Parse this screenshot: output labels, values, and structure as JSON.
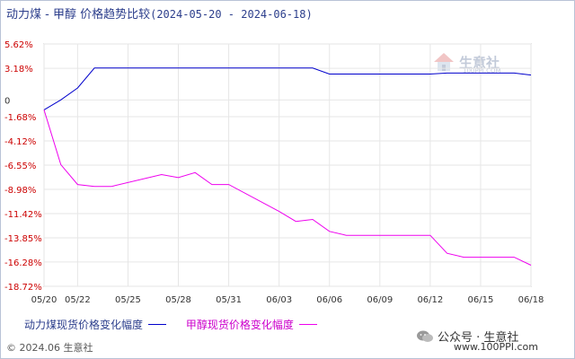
{
  "title": {
    "main": "动力煤 - 甲醇 价格趋势比较",
    "range": "(2024-05-20 - 2024-06-18)"
  },
  "watermark": {
    "brand": "生意社",
    "url": "100PPI.COM",
    "icon": "house-logo-icon"
  },
  "footer": {
    "copyright": "© 2024.06 生意社",
    "wechat_label": "公众号 · 生意社",
    "url": "www.100PPI.com"
  },
  "colors": {
    "series_1": "#0000cc",
    "series_2": "#ee00ee",
    "y_tick": "#cc0000",
    "grid": "#e6e6e6",
    "axis": "#999999"
  },
  "chart_data": {
    "type": "line",
    "title": "动力煤 - 甲醇 价格趋势比较",
    "xlabel": "",
    "ylabel": "",
    "ylim": [
      -18.72,
      5.62
    ],
    "grid": true,
    "legend_position": "bottom-left",
    "x_tick_labels": [
      "05/20",
      "05/22",
      "05/25",
      "05/28",
      "05/31",
      "06/03",
      "06/06",
      "06/09",
      "06/12",
      "06/15",
      "06/18"
    ],
    "y_tick_labels": [
      "5.62%",
      "3.18%",
      "0",
      "-1.68%",
      "-4.12%",
      "-6.55%",
      "-8.98%",
      "-11.42%",
      "-13.85%",
      "-16.28%",
      "-18.72%"
    ],
    "series": [
      {
        "name": "动力煤现货价格变化幅度",
        "points": [
          {
            "x": "05/20",
            "y": -1.0
          },
          {
            "x": "05/21",
            "y": 0.0
          },
          {
            "x": "05/22",
            "y": 1.2
          },
          {
            "x": "05/23",
            "y": 3.2
          },
          {
            "x": "05/24",
            "y": 3.2
          },
          {
            "x": "05/27",
            "y": 3.2
          },
          {
            "x": "05/28",
            "y": 3.2
          },
          {
            "x": "05/29",
            "y": 3.2
          },
          {
            "x": "05/30",
            "y": 3.2
          },
          {
            "x": "05/31",
            "y": 3.2
          },
          {
            "x": "06/03",
            "y": 3.2
          },
          {
            "x": "06/04",
            "y": 3.2
          },
          {
            "x": "06/05",
            "y": 3.2
          },
          {
            "x": "06/06",
            "y": 2.6
          },
          {
            "x": "06/07",
            "y": 2.6
          },
          {
            "x": "06/11",
            "y": 2.6
          },
          {
            "x": "06/12",
            "y": 2.6
          },
          {
            "x": "06/13",
            "y": 2.7
          },
          {
            "x": "06/14",
            "y": 2.7
          },
          {
            "x": "06/17",
            "y": 2.7
          },
          {
            "x": "06/18",
            "y": 2.5
          }
        ]
      },
      {
        "name": "甲醇现货价格变化幅度",
        "points": [
          {
            "x": "05/20",
            "y": -1.0
          },
          {
            "x": "05/21",
            "y": -6.5
          },
          {
            "x": "05/22",
            "y": -8.5
          },
          {
            "x": "05/23",
            "y": -8.7
          },
          {
            "x": "05/24",
            "y": -8.7
          },
          {
            "x": "05/27",
            "y": -7.5
          },
          {
            "x": "05/28",
            "y": -7.8
          },
          {
            "x": "05/29",
            "y": -7.3
          },
          {
            "x": "05/30",
            "y": -8.5
          },
          {
            "x": "05/31",
            "y": -8.5
          },
          {
            "x": "06/03",
            "y": -11.2
          },
          {
            "x": "06/04",
            "y": -12.2
          },
          {
            "x": "06/05",
            "y": -12.0
          },
          {
            "x": "06/06",
            "y": -13.2
          },
          {
            "x": "06/07",
            "y": -13.6
          },
          {
            "x": "06/11",
            "y": -13.6
          },
          {
            "x": "06/12",
            "y": -13.6
          },
          {
            "x": "06/13",
            "y": -15.4
          },
          {
            "x": "06/14",
            "y": -15.8
          },
          {
            "x": "06/17",
            "y": -15.8
          },
          {
            "x": "06/18",
            "y": -16.6
          }
        ]
      }
    ]
  }
}
